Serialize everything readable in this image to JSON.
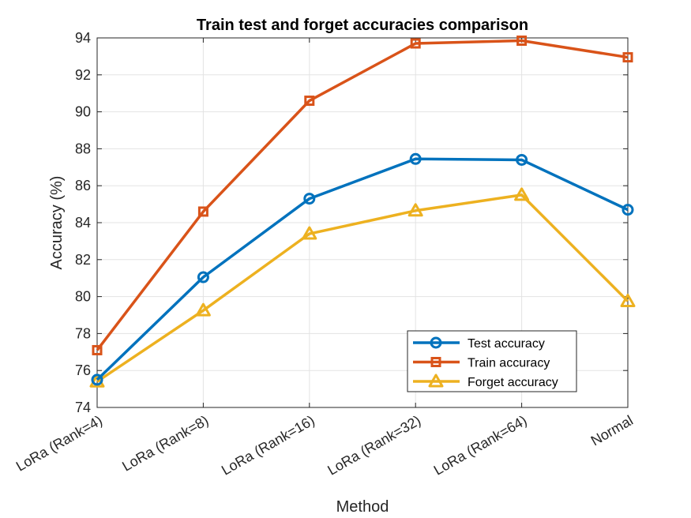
{
  "chart_data": {
    "type": "line",
    "title": "Train test and forget accuracies comparison",
    "xlabel": "Method",
    "ylabel": "Accuracy (%)",
    "categories": [
      "LoRa (Rank=4)",
      "LoRa (Rank=8)",
      "LoRa (Rank=16)",
      "LoRa (Rank=32)",
      "LoRa (Rank=64)",
      "Normal"
    ],
    "ylim": [
      74,
      94
    ],
    "yticks": [
      74,
      76,
      78,
      80,
      82,
      84,
      86,
      88,
      90,
      92,
      94
    ],
    "grid": true,
    "legend_position": "bottom-right",
    "series": [
      {
        "name": "Test accuracy",
        "marker": "circle",
        "color": "#0072BD",
        "values": [
          75.5,
          81.05,
          85.3,
          87.45,
          87.4,
          84.7
        ]
      },
      {
        "name": "Train accuracy",
        "marker": "square",
        "color": "#D95319",
        "values": [
          77.1,
          84.6,
          90.6,
          93.7,
          93.85,
          92.95
        ]
      },
      {
        "name": "Forget accuracy",
        "marker": "triangle",
        "color": "#EDB120",
        "values": [
          75.4,
          79.25,
          83.4,
          84.65,
          85.5,
          79.75
        ]
      }
    ]
  }
}
